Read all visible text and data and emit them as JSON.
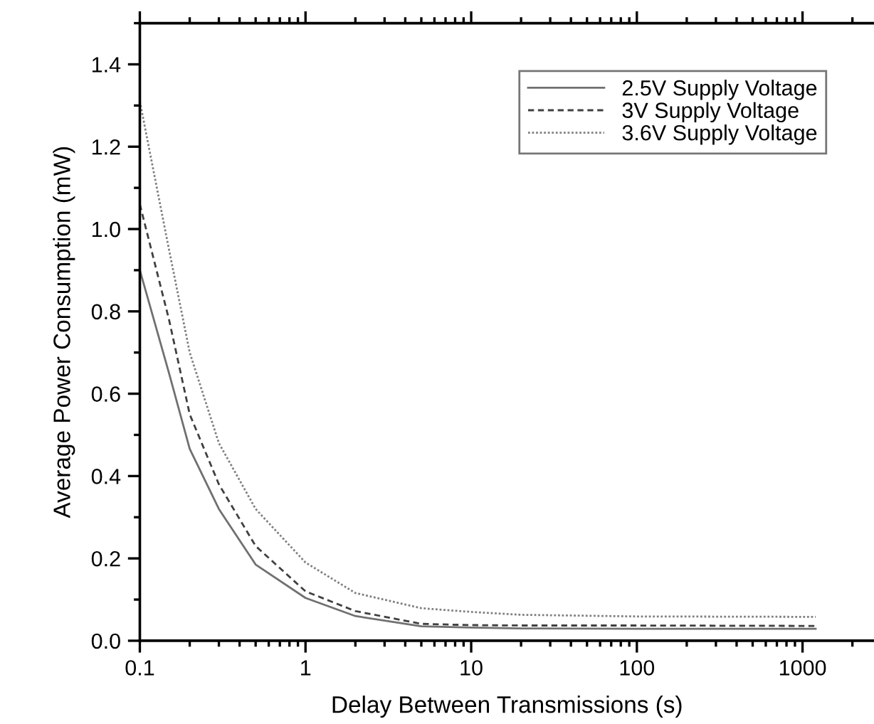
{
  "chart_data": {
    "type": "line",
    "xlabel": "Delay Between Transmissions (s)",
    "ylabel": "Average Power Consumption (mW)",
    "x": [
      0.1,
      0.15,
      0.2,
      0.3,
      0.5,
      1,
      2,
      5,
      10,
      20,
      100,
      1200
    ],
    "series": [
      {
        "name": "2.5V Supply Voltage",
        "color": "#707070",
        "line_style": "solid",
        "values": [
          0.9,
          0.65,
          0.466,
          0.32,
          0.185,
          0.104,
          0.06,
          0.035,
          0.032,
          0.03,
          0.029,
          0.029
        ]
      },
      {
        "name": "3V Supply Voltage",
        "color": "#404040",
        "line_style": "dashed",
        "values": [
          1.06,
          0.78,
          0.55,
          0.38,
          0.23,
          0.12,
          0.072,
          0.041,
          0.038,
          0.037,
          0.037,
          0.036
        ]
      },
      {
        "name": "3.6V Supply Voltage",
        "color": "#808080",
        "line_style": "dotted",
        "values": [
          1.31,
          0.95,
          0.7,
          0.48,
          0.32,
          0.19,
          0.116,
          0.079,
          0.07,
          0.063,
          0.059,
          0.058
        ]
      }
    ],
    "log": "x",
    "xlim": [
      0.1,
      2700
    ],
    "xticks": [
      0.1,
      1,
      10,
      100,
      1000
    ],
    "ylim": [
      0,
      1.5
    ],
    "yticks": [
      {
        "value": 0,
        "label": "0.0"
      },
      0.2,
      0.4,
      0.6,
      0.8,
      {
        "value": 1,
        "label": "1.0"
      },
      1.2,
      1.4
    ],
    "grid": false,
    "legend": "top right",
    "marker": "none"
  }
}
